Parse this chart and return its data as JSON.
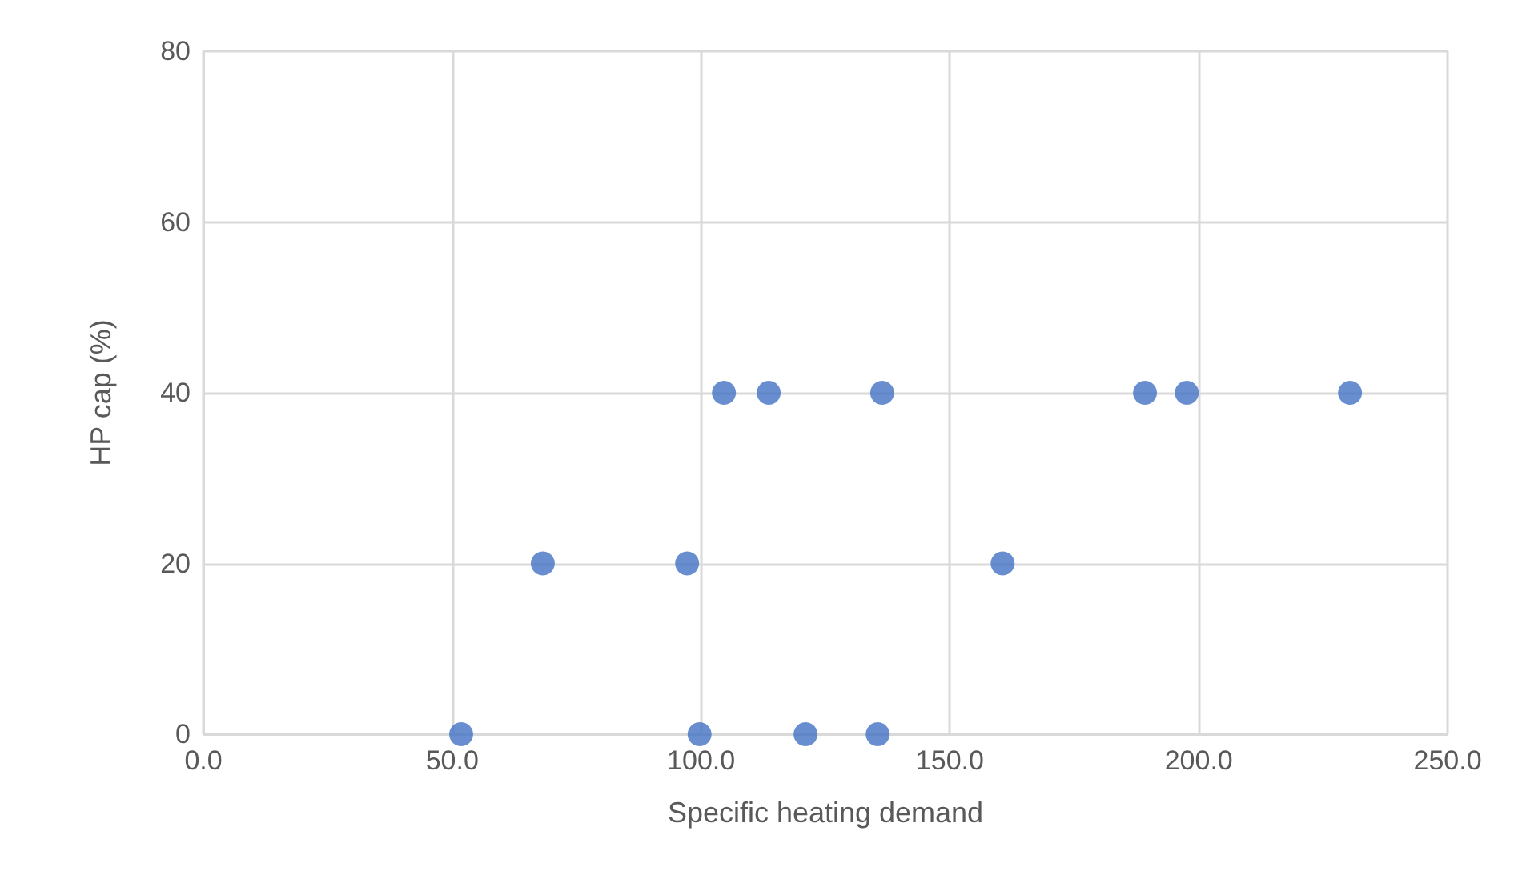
{
  "chart_data": {
    "type": "scatter",
    "xlabel": "Specific heating demand",
    "ylabel": "HP cap (%)",
    "x": [
      51.8,
      68.2,
      97.2,
      99.7,
      104.6,
      113.6,
      121.0,
      135.5,
      136.4,
      160.6,
      189.2,
      197.6,
      230.4
    ],
    "series": [
      {
        "color": "#4472c4",
        "values": [
          0,
          20,
          20,
          0,
          40,
          40,
          0,
          0,
          40,
          20,
          40,
          40,
          40
        ]
      }
    ],
    "xlim": [
      0,
      250
    ],
    "xticks": [
      {
        "value": 0,
        "label": "0.0"
      },
      {
        "value": 50,
        "label": "50.0"
      },
      {
        "value": 100,
        "label": "100.0"
      },
      {
        "value": 150,
        "label": "150.0"
      },
      {
        "value": 200,
        "label": "200.0"
      },
      {
        "value": 250,
        "label": "250.0"
      }
    ],
    "ylim": [
      0,
      80
    ],
    "yticks": [
      0,
      20,
      40,
      60,
      80
    ],
    "grid": true,
    "marker": "circle"
  }
}
